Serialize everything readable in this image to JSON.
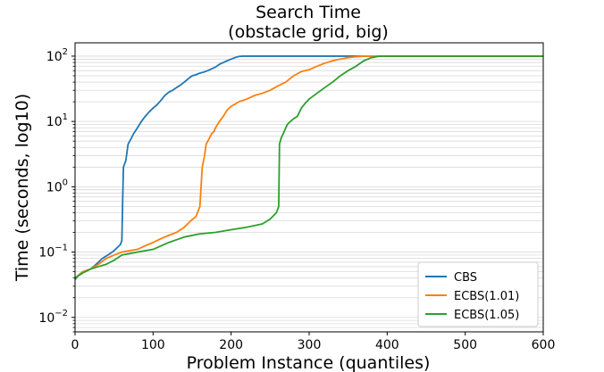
{
  "chart_data": {
    "type": "line",
    "title": [
      "Search Time",
      "(obstacle grid, big)"
    ],
    "xlabel": "Problem Instance (quantiles)",
    "ylabel": "Time (seconds, log10)",
    "xlim": [
      0,
      600
    ],
    "ylim": [
      0.006,
      160
    ],
    "yscale": "log",
    "grid": "y-minor",
    "legend_position": "lower-right",
    "x_ticks": [
      {
        "value": 0,
        "label": "0"
      },
      {
        "value": 100,
        "label": "100"
      },
      {
        "value": 200,
        "label": "200"
      },
      {
        "value": 300,
        "label": "300"
      },
      {
        "value": 400,
        "label": "400"
      },
      {
        "value": 500,
        "label": "500"
      },
      {
        "value": 600,
        "label": "600"
      }
    ],
    "y_ticks": [
      {
        "value": 0.01,
        "base": "10",
        "exp": "−2"
      },
      {
        "value": 0.1,
        "base": "10",
        "exp": "−1"
      },
      {
        "value": 1,
        "base": "10",
        "exp": "0"
      },
      {
        "value": 10,
        "base": "10",
        "exp": "1"
      },
      {
        "value": 100,
        "base": "10",
        "exp": "2"
      }
    ],
    "series": [
      {
        "name": "CBS",
        "color": "#1f77b4",
        "points": [
          [
            0,
            0.038
          ],
          [
            5,
            0.045
          ],
          [
            10,
            0.05
          ],
          [
            20,
            0.055
          ],
          [
            25,
            0.062
          ],
          [
            30,
            0.07
          ],
          [
            35,
            0.08
          ],
          [
            40,
            0.087
          ],
          [
            45,
            0.095
          ],
          [
            50,
            0.105
          ],
          [
            55,
            0.12
          ],
          [
            58,
            0.13
          ],
          [
            60,
            0.15
          ],
          [
            61,
            0.6
          ],
          [
            62,
            2.0
          ],
          [
            65,
            2.5
          ],
          [
            68,
            4.5
          ],
          [
            72,
            5.5
          ],
          [
            75,
            6.5
          ],
          [
            80,
            8
          ],
          [
            85,
            10
          ],
          [
            90,
            12
          ],
          [
            95,
            14
          ],
          [
            100,
            16
          ],
          [
            105,
            18
          ],
          [
            110,
            21
          ],
          [
            115,
            25
          ],
          [
            120,
            28
          ],
          [
            125,
            30
          ],
          [
            130,
            33
          ],
          [
            135,
            36
          ],
          [
            140,
            40
          ],
          [
            145,
            45
          ],
          [
            150,
            50
          ],
          [
            155,
            52
          ],
          [
            160,
            55
          ],
          [
            165,
            57
          ],
          [
            170,
            60
          ],
          [
            180,
            68
          ],
          [
            185,
            75
          ],
          [
            190,
            80
          ],
          [
            195,
            85
          ],
          [
            200,
            90
          ],
          [
            205,
            95
          ],
          [
            210,
            99
          ],
          [
            215,
            100
          ],
          [
            600,
            100
          ]
        ]
      },
      {
        "name": "ECBS(1.01)",
        "color": "#ff7f0e",
        "points": [
          [
            0,
            0.04
          ],
          [
            10,
            0.05
          ],
          [
            20,
            0.055
          ],
          [
            30,
            0.065
          ],
          [
            40,
            0.08
          ],
          [
            50,
            0.09
          ],
          [
            60,
            0.1
          ],
          [
            80,
            0.11
          ],
          [
            90,
            0.125
          ],
          [
            100,
            0.14
          ],
          [
            110,
            0.16
          ],
          [
            120,
            0.18
          ],
          [
            130,
            0.2
          ],
          [
            140,
            0.24
          ],
          [
            148,
            0.3
          ],
          [
            155,
            0.35
          ],
          [
            160,
            0.5
          ],
          [
            163,
            2.0
          ],
          [
            166,
            3.0
          ],
          [
            168,
            4.5
          ],
          [
            172,
            5.5
          ],
          [
            175,
            6.5
          ],
          [
            178,
            7.0
          ],
          [
            180,
            8.0
          ],
          [
            185,
            10
          ],
          [
            190,
            12
          ],
          [
            195,
            15
          ],
          [
            200,
            17
          ],
          [
            210,
            20
          ],
          [
            220,
            22
          ],
          [
            230,
            25
          ],
          [
            240,
            27
          ],
          [
            250,
            30
          ],
          [
            260,
            35
          ],
          [
            270,
            40
          ],
          [
            280,
            50
          ],
          [
            290,
            58
          ],
          [
            300,
            62
          ],
          [
            310,
            70
          ],
          [
            320,
            78
          ],
          [
            330,
            85
          ],
          [
            340,
            90
          ],
          [
            350,
            95
          ],
          [
            360,
            98
          ],
          [
            370,
            100
          ],
          [
            600,
            100
          ]
        ]
      },
      {
        "name": "ECBS(1.05)",
        "color": "#2ca02c",
        "points": [
          [
            0,
            0.04
          ],
          [
            10,
            0.048
          ],
          [
            20,
            0.055
          ],
          [
            30,
            0.06
          ],
          [
            40,
            0.065
          ],
          [
            50,
            0.075
          ],
          [
            60,
            0.09
          ],
          [
            80,
            0.1
          ],
          [
            100,
            0.11
          ],
          [
            120,
            0.14
          ],
          [
            140,
            0.17
          ],
          [
            160,
            0.19
          ],
          [
            180,
            0.2
          ],
          [
            200,
            0.22
          ],
          [
            220,
            0.24
          ],
          [
            240,
            0.27
          ],
          [
            250,
            0.32
          ],
          [
            258,
            0.4
          ],
          [
            261,
            0.5
          ],
          [
            262,
            4.5
          ],
          [
            264,
            5.5
          ],
          [
            268,
            7
          ],
          [
            272,
            9
          ],
          [
            276,
            10
          ],
          [
            280,
            11
          ],
          [
            285,
            12
          ],
          [
            290,
            16
          ],
          [
            295,
            19
          ],
          [
            300,
            22
          ],
          [
            310,
            27
          ],
          [
            320,
            33
          ],
          [
            330,
            40
          ],
          [
            340,
            50
          ],
          [
            350,
            60
          ],
          [
            360,
            70
          ],
          [
            370,
            85
          ],
          [
            380,
            95
          ],
          [
            390,
            100
          ],
          [
            600,
            100
          ]
        ]
      }
    ]
  }
}
